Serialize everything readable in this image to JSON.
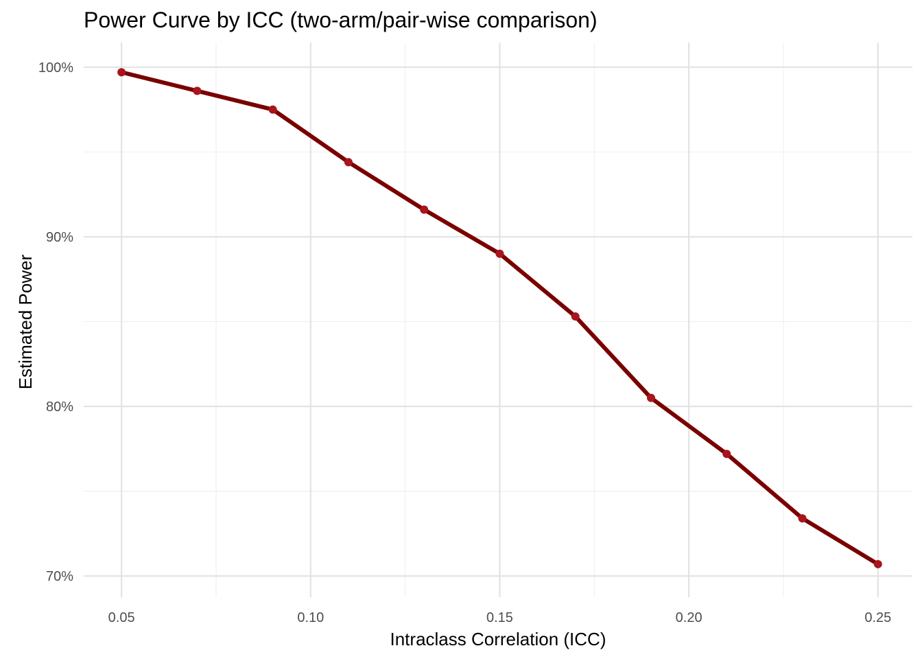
{
  "chart_data": {
    "type": "line",
    "title": "Power Curve by ICC (two-arm/pair-wise comparison)",
    "xlabel": "Intraclass Correlation (ICC)",
    "ylabel": "Estimated Power",
    "x": [
      0.05,
      0.07,
      0.09,
      0.11,
      0.13,
      0.15,
      0.17,
      0.19,
      0.21,
      0.23,
      0.25
    ],
    "series": [
      {
        "values": [
          0.997,
          0.986,
          0.975,
          0.944,
          0.916,
          0.89,
          0.853,
          0.805,
          0.772,
          0.734,
          0.707
        ],
        "line_color": "#7a0000",
        "point_color": "#a8151c"
      }
    ],
    "x_ticks": [
      0.05,
      0.1,
      0.15,
      0.2,
      0.25
    ],
    "x_tick_labels": [
      "0.05",
      "0.10",
      "0.15",
      "0.20",
      "0.25"
    ],
    "x_minor_ticks": [
      0.075,
      0.125,
      0.175,
      0.225
    ],
    "y_ticks": [
      0.7,
      0.8,
      0.9,
      1.0
    ],
    "y_tick_labels": [
      "70%",
      "80%",
      "90%",
      "100%"
    ],
    "y_minor_ticks": [
      0.75,
      0.85,
      0.95
    ],
    "xlim": [
      0.04,
      0.2591
    ],
    "ylim": [
      0.6875,
      1.0145
    ],
    "grid": true,
    "legend": "none"
  }
}
